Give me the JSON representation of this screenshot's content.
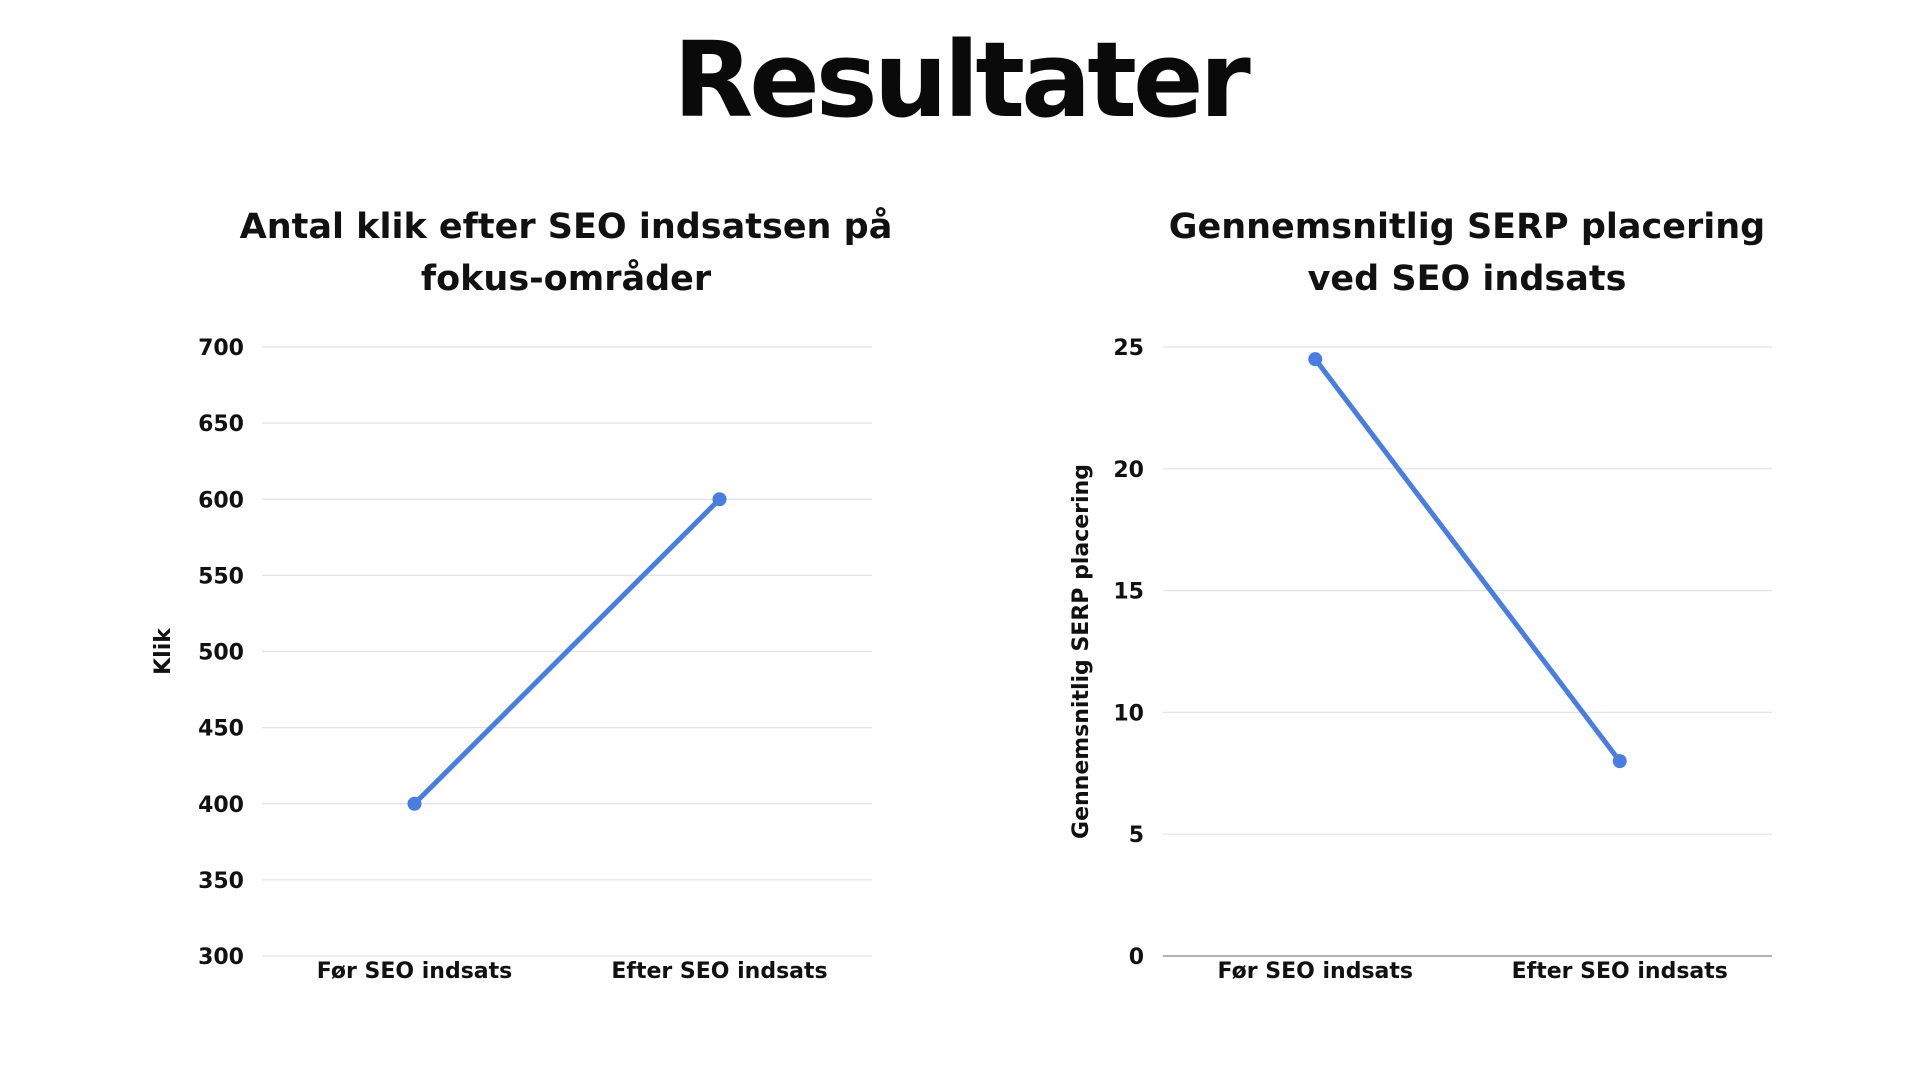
{
  "page": {
    "title": "Resultater"
  },
  "colors": {
    "series_line": "#4a7de0",
    "gridline": "#e3e3e3",
    "text": "#111111"
  },
  "chart_data": [
    {
      "type": "line",
      "title": "Antal klik efter SEO indsatsen på fokus-områder",
      "title_lines": [
        "Antal klik efter SEO indsatsen på",
        "fokus-områder"
      ],
      "categories": [
        "Før SEO indsats",
        "Efter SEO indsats"
      ],
      "series": [
        {
          "values": [
            400,
            600
          ]
        }
      ],
      "xlabel": "",
      "ylabel": "Klik",
      "ylim": [
        300,
        700
      ],
      "yticks": [
        300,
        350,
        400,
        450,
        500,
        550,
        600,
        650,
        700
      ],
      "grid": true,
      "legend": "none"
    },
    {
      "type": "line",
      "title": "Gennemsnitlig SERP placering ved SEO indsats",
      "title_lines": [
        "Gennemsnitlig SERP placering",
        "ved SEO indsats"
      ],
      "categories": [
        "Før SEO indsats",
        "Efter SEO indsats"
      ],
      "series": [
        {
          "values": [
            24.5,
            8
          ]
        }
      ],
      "xlabel": "",
      "ylabel": "Gennemsnitlig SERP placering",
      "ylim": [
        0,
        25
      ],
      "yticks": [
        0,
        5,
        10,
        15,
        20,
        25
      ],
      "grid": true,
      "legend": "none"
    }
  ]
}
